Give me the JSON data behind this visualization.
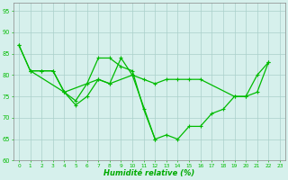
{
  "xlabel": "Humidité relative (%)",
  "xlim_min": -0.5,
  "xlim_max": 23.5,
  "ylim_min": 60,
  "ylim_max": 97,
  "yticks": [
    60,
    65,
    70,
    75,
    80,
    85,
    90,
    95
  ],
  "xticks": [
    0,
    1,
    2,
    3,
    4,
    5,
    6,
    7,
    8,
    9,
    10,
    11,
    12,
    13,
    14,
    15,
    16,
    17,
    18,
    19,
    20,
    21,
    22,
    23
  ],
  "bg_color": "#d6f0ec",
  "grid_color": "#aacfca",
  "line_color": "#00bb00",
  "tick_color": "#00bb00",
  "label_color": "#00aa00",
  "series1_x": [
    0,
    1,
    2,
    3,
    4,
    5,
    6,
    7,
    8,
    9,
    10,
    11,
    12,
    13,
    14,
    15,
    16,
    17,
    18,
    19,
    20,
    21,
    22
  ],
  "series1_y": [
    87,
    81,
    81,
    81,
    76,
    74,
    78,
    84,
    84,
    82,
    81,
    72,
    65,
    66,
    65,
    68,
    68,
    71,
    72,
    75,
    75,
    80,
    83
  ],
  "series2_x": [
    1,
    4,
    5,
    6,
    7,
    8,
    9,
    10,
    12
  ],
  "series2_y": [
    81,
    76,
    73,
    75,
    79,
    78,
    84,
    80,
    65
  ],
  "series3_x": [
    0,
    1,
    2,
    3,
    4,
    7,
    8,
    10,
    11,
    12,
    13,
    14,
    15,
    16,
    19,
    20,
    21,
    22
  ],
  "series3_y": [
    87,
    81,
    81,
    81,
    76,
    79,
    78,
    80,
    79,
    78,
    79,
    79,
    79,
    79,
    75,
    75,
    76,
    83
  ]
}
